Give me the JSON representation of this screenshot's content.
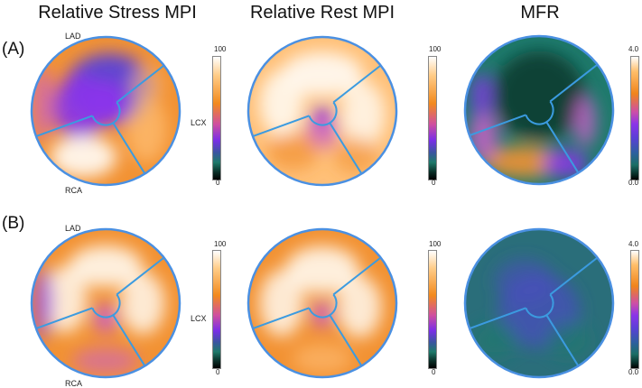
{
  "columns": [
    {
      "title": "Relative Stress MPI"
    },
    {
      "title": "Relative Rest MPI"
    },
    {
      "title": "MFR"
    }
  ],
  "rows": [
    {
      "label": "(A)"
    },
    {
      "label": "(B)"
    }
  ],
  "territories": {
    "lad": "LAD",
    "lcx": "LCX",
    "rca": "RCA"
  },
  "colorbars": {
    "mpi": {
      "max": "100",
      "min": "0"
    },
    "mfr": {
      "max": "4.0",
      "min": "0.0"
    }
  },
  "colors": {
    "territory_lines": "#3b9be0",
    "rim": "#4a90e2",
    "white": "#fff8ee",
    "light_orange": "#ffc078",
    "orange": "#f29233",
    "magenta": "#c960c8",
    "purple": "#8a35ea",
    "blue_purple": "#5a40d8",
    "teal": "#1e7a6c",
    "dark_teal": "#0d3e34",
    "mfr_green": "#2a6e7a",
    "mfr_blue": "#4a4cc0"
  }
}
